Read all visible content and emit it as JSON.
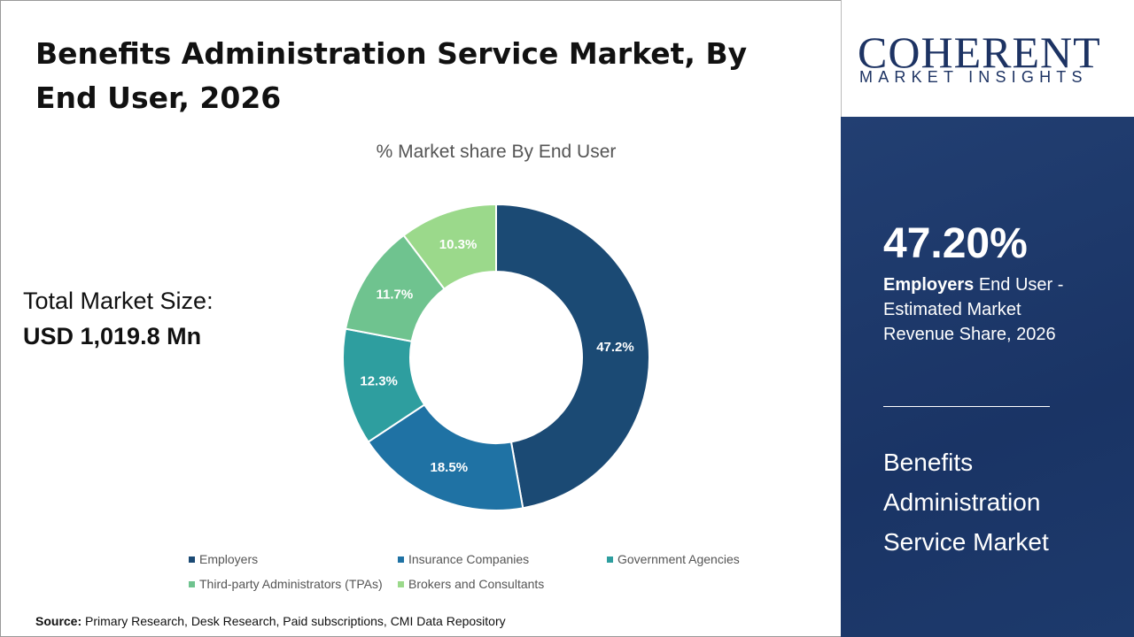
{
  "title": "Benefits Administration Service Market, By End User, 2026",
  "total_label": "Total Market Size:",
  "total_value": "USD 1,019.8 Mn",
  "source_label": "Source:",
  "source_text": " Primary Research, Desk Research, Paid subscriptions, CMI Data Repository",
  "logo": {
    "main": "COHERENT",
    "sub": "MARKET INSIGHTS"
  },
  "highlight": {
    "value": "47.20%",
    "bold": "Employers",
    "text": " End User - Estimated Market Revenue Share, 2026",
    "market": "Benefits Administration Service Market"
  },
  "chart_data": {
    "type": "pie",
    "donut": true,
    "title": "% Market share By End User",
    "categories": [
      "Employers",
      "Insurance Companies",
      "Government Agencies",
      "Third-party Administrators (TPAs)",
      "Brokers and Consultants"
    ],
    "values": [
      47.2,
      18.5,
      12.3,
      11.7,
      10.3
    ],
    "labels": [
      "47.2%",
      "18.5%",
      "12.3%",
      "11.7%",
      "10.3%"
    ],
    "colors": [
      "#1b4a74",
      "#1f72a4",
      "#2e9e9f",
      "#6fc38f",
      "#9bd98b"
    ],
    "legend": "bottom"
  }
}
